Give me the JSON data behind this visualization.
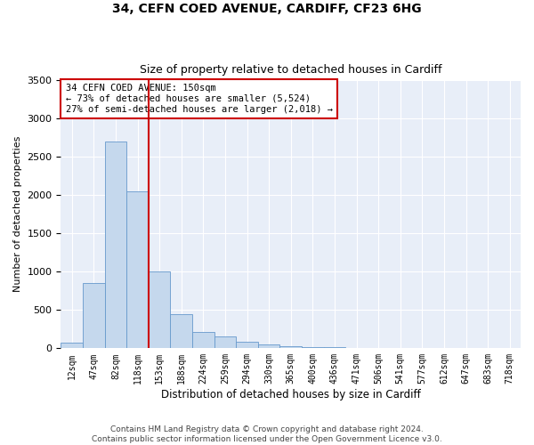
{
  "title_line1": "34, CEFN COED AVENUE, CARDIFF, CF23 6HG",
  "title_line2": "Size of property relative to detached houses in Cardiff",
  "xlabel": "Distribution of detached houses by size in Cardiff",
  "ylabel": "Number of detached properties",
  "categories": [
    "12sqm",
    "47sqm",
    "82sqm",
    "118sqm",
    "153sqm",
    "188sqm",
    "224sqm",
    "259sqm",
    "294sqm",
    "330sqm",
    "365sqm",
    "400sqm",
    "436sqm",
    "471sqm",
    "506sqm",
    "541sqm",
    "577sqm",
    "612sqm",
    "647sqm",
    "683sqm",
    "718sqm"
  ],
  "values": [
    75,
    850,
    2700,
    2050,
    1000,
    450,
    215,
    155,
    80,
    50,
    30,
    15,
    10,
    5,
    3,
    2,
    1,
    0,
    0,
    0,
    0
  ],
  "bar_color": "#c5d8ed",
  "bar_edge_color": "#6699cc",
  "vline_x": 3.5,
  "vline_color": "#cc0000",
  "annotation_text": "34 CEFN COED AVENUE: 150sqm\n← 73% of detached houses are smaller (5,524)\n27% of semi-detached houses are larger (2,018) →",
  "annotation_box_color": "#cc0000",
  "ylim": [
    0,
    3500
  ],
  "yticks": [
    0,
    500,
    1000,
    1500,
    2000,
    2500,
    3000,
    3500
  ],
  "background_color": "#e8eef8",
  "grid_color": "#ffffff",
  "footnote": "Contains HM Land Registry data © Crown copyright and database right 2024.\nContains public sector information licensed under the Open Government Licence v3.0."
}
